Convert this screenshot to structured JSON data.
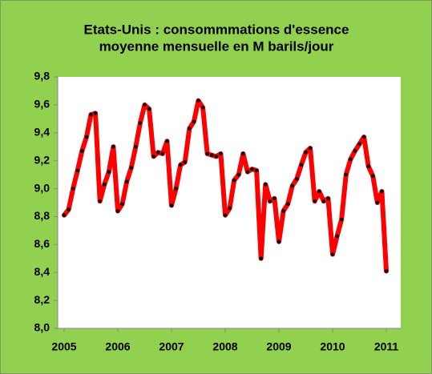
{
  "chart_data": {
    "type": "line",
    "title": [
      "Etats-Unis : consommmations d'essence",
      "moyenne mensuelle en M barils/jour"
    ],
    "categories": [
      "2005",
      null,
      null,
      null,
      null,
      null,
      null,
      null,
      null,
      null,
      null,
      null,
      "2006",
      null,
      null,
      null,
      null,
      null,
      null,
      null,
      null,
      null,
      null,
      null,
      "2007",
      null,
      null,
      null,
      null,
      null,
      null,
      null,
      null,
      null,
      null,
      null,
      "2008",
      null,
      null,
      null,
      null,
      null,
      null,
      null,
      null,
      null,
      null,
      null,
      "2009",
      null,
      null,
      null,
      null,
      null,
      null,
      null,
      null,
      null,
      null,
      null,
      "2010",
      null,
      null,
      null,
      null,
      null,
      null,
      null,
      null,
      null,
      null,
      null,
      "2011"
    ],
    "values": [
      8.81,
      8.85,
      9.0,
      9.13,
      9.27,
      9.37,
      9.53,
      9.54,
      8.91,
      9.03,
      9.12,
      9.3,
      8.84,
      8.89,
      9.05,
      9.15,
      9.3,
      9.47,
      9.6,
      9.57,
      9.23,
      9.26,
      9.25,
      9.34,
      8.88,
      9.0,
      9.17,
      9.19,
      9.43,
      9.48,
      9.63,
      9.58,
      9.25,
      9.24,
      9.23,
      9.25,
      8.81,
      8.86,
      9.06,
      9.1,
      9.25,
      9.12,
      9.14,
      9.13,
      8.5,
      9.03,
      8.91,
      8.93,
      8.62,
      8.84,
      8.89,
      9.02,
      9.07,
      9.17,
      9.26,
      9.29,
      8.91,
      8.98,
      8.91,
      8.93,
      8.53,
      8.66,
      8.78,
      9.1,
      9.21,
      9.27,
      9.32,
      9.37,
      9.16,
      9.09,
      8.9,
      8.98,
      8.41
    ],
    "color": "#ff0000",
    "marker_color": "#000000",
    "ylim": [
      8.0,
      9.8
    ],
    "yticks": [
      {
        "value": 8.0,
        "label": "8,0"
      },
      {
        "value": 8.2,
        "label": "8,2"
      },
      {
        "value": 8.4,
        "label": "8,4"
      },
      {
        "value": 8.6,
        "label": "8,6"
      },
      {
        "value": 8.8,
        "label": "8,8"
      },
      {
        "value": 9.0,
        "label": "9,0"
      },
      {
        "value": 9.2,
        "label": "9,2"
      },
      {
        "value": 9.4,
        "label": "9,4"
      },
      {
        "value": 9.6,
        "label": "9,6"
      },
      {
        "value": 9.8,
        "label": "9,8"
      }
    ],
    "grid": false
  }
}
